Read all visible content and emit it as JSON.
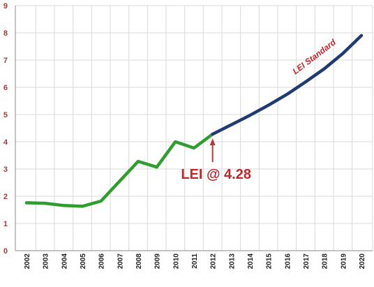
{
  "chart_data": {
    "type": "line",
    "title": "",
    "xlabel": "",
    "ylabel": "",
    "ylim": [
      0,
      9
    ],
    "yticks": [
      "0",
      "1",
      "2",
      "3",
      "4",
      "5",
      "6",
      "7",
      "8",
      "9"
    ],
    "categories": [
      "2002",
      "2003",
      "2004",
      "2005",
      "2006",
      "2007",
      "2008",
      "2009",
      "2010",
      "2011",
      "2012",
      "2013",
      "2014",
      "2015",
      "2016",
      "2017",
      "2018",
      "2019",
      "2020"
    ],
    "grid": true,
    "legend": "none",
    "series": [
      {
        "color": "#2e9e2e",
        "points": [
          [
            2002,
            1.76
          ],
          [
            2003,
            1.74
          ],
          [
            2004,
            1.66
          ],
          [
            2005,
            1.63
          ],
          [
            2006,
            1.82
          ],
          [
            2007,
            2.55
          ],
          [
            2008,
            3.28
          ],
          [
            2009,
            3.07
          ],
          [
            2010,
            4.0
          ],
          [
            2011,
            3.77
          ],
          [
            2012,
            4.28
          ]
        ]
      },
      {
        "color": "#1f3b73",
        "points": [
          [
            2012,
            4.28
          ],
          [
            2013,
            4.62
          ],
          [
            2014,
            4.97
          ],
          [
            2015,
            5.34
          ],
          [
            2016,
            5.74
          ],
          [
            2017,
            6.2
          ],
          [
            2018,
            6.68
          ],
          [
            2019,
            7.24
          ],
          [
            2020,
            7.9
          ]
        ]
      }
    ],
    "annotations": [
      {
        "text": "LEI @ 4.28",
        "x": 2012,
        "y": 4.28,
        "type": "arrow-label"
      },
      {
        "text": "LEI Standard",
        "x": 2018,
        "y": 6.68,
        "type": "line-label"
      }
    ],
    "colors": {
      "annotation": "#c0272d",
      "arrow": "#b23a3a",
      "ytick": "#a33a3a"
    }
  }
}
